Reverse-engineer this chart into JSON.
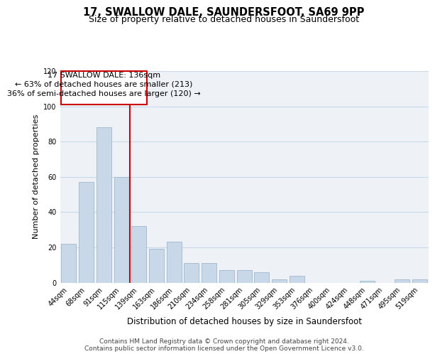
{
  "title": "17, SWALLOW DALE, SAUNDERSFOOT, SA69 9PP",
  "subtitle": "Size of property relative to detached houses in Saundersfoot",
  "xlabel": "Distribution of detached houses by size in Saundersfoot",
  "ylabel": "Number of detached properties",
  "bar_labels": [
    "44sqm",
    "68sqm",
    "91sqm",
    "115sqm",
    "139sqm",
    "163sqm",
    "186sqm",
    "210sqm",
    "234sqm",
    "258sqm",
    "281sqm",
    "305sqm",
    "329sqm",
    "353sqm",
    "376sqm",
    "400sqm",
    "424sqm",
    "448sqm",
    "471sqm",
    "495sqm",
    "519sqm"
  ],
  "bar_values": [
    22,
    57,
    88,
    60,
    32,
    19,
    23,
    11,
    11,
    7,
    7,
    6,
    2,
    4,
    0,
    0,
    0,
    1,
    0,
    2,
    2
  ],
  "bar_color": "#c8d8e8",
  "bar_edge_color": "#a0b8cc",
  "highlight_line_color": "#cc0000",
  "annotation_line1": "17 SWALLOW DALE: 136sqm",
  "annotation_line2": "← 63% of detached houses are smaller (213)",
  "annotation_line3": "36% of semi-detached houses are larger (120) →",
  "annotation_box_color": "#cc0000",
  "ylim": [
    0,
    120
  ],
  "yticks": [
    0,
    20,
    40,
    60,
    80,
    100,
    120
  ],
  "grid_color": "#c8d8e8",
  "background_color": "#eef2f7",
  "footer_text": "Contains HM Land Registry data © Crown copyright and database right 2024.\nContains public sector information licensed under the Open Government Licence v3.0.",
  "title_fontsize": 10.5,
  "subtitle_fontsize": 9,
  "xlabel_fontsize": 8.5,
  "ylabel_fontsize": 8,
  "tick_fontsize": 7,
  "annotation_fontsize": 8,
  "footer_fontsize": 6.5
}
